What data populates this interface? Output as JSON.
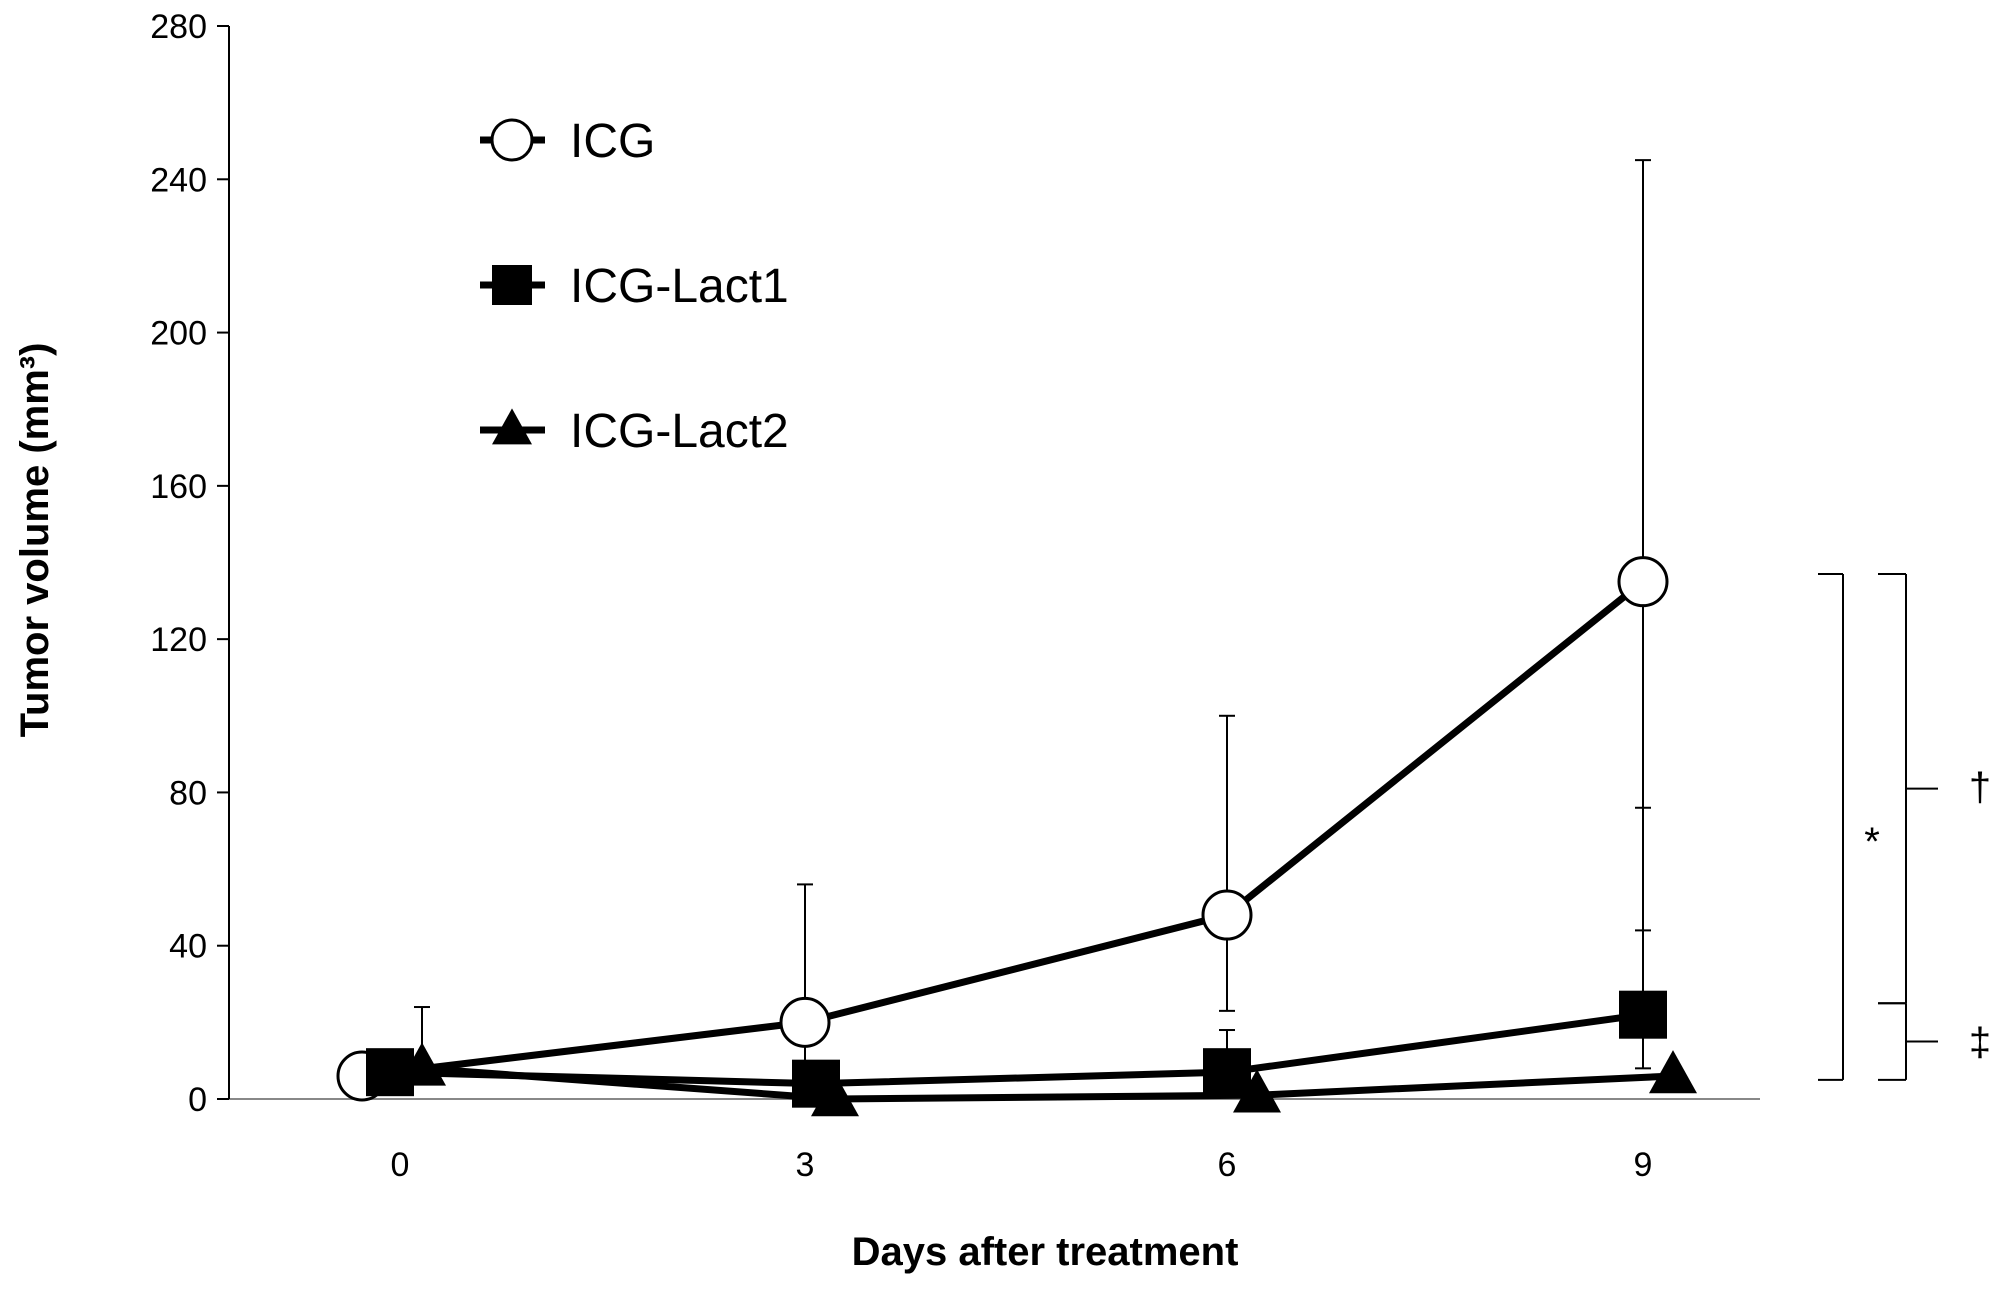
{
  "chart_data": {
    "type": "line",
    "title": "",
    "xlabel": "Days after treatment",
    "ylabel": "Tumor volume (mm³)",
    "x": [
      0,
      3,
      6,
      9
    ],
    "x_ticks": [
      "0",
      "3",
      "6",
      "9"
    ],
    "ylim": [
      0,
      280
    ],
    "y_ticks": [
      "0",
      "40",
      "80",
      "120",
      "160",
      "200",
      "240",
      "280"
    ],
    "grid": false,
    "legend_position": "top-left",
    "colors": {
      "line": "#000000",
      "background": "#ffffff"
    },
    "series": [
      {
        "name": "ICG",
        "marker": "open-circle",
        "values": [
          6,
          20,
          48,
          135
        ],
        "error_up": [
          6,
          36,
          52,
          110
        ],
        "error_down": [
          0,
          12,
          25,
          91
        ]
      },
      {
        "name": "ICG-Lact1",
        "marker": "filled-square",
        "values": [
          7,
          4,
          7,
          22
        ],
        "error_up": [
          0,
          0,
          11,
          54
        ],
        "error_down": [
          0,
          0,
          0,
          14
        ]
      },
      {
        "name": "ICG-Lact2",
        "marker": "filled-triangle",
        "values": [
          8,
          0,
          1,
          6
        ],
        "error_up": [
          16,
          0,
          0,
          0
        ],
        "error_down": [
          0,
          0,
          0,
          0
        ]
      }
    ],
    "significance": [
      {
        "label": "*",
        "from": 5,
        "to": 137
      },
      {
        "label": "†",
        "from": 25,
        "to": 137
      },
      {
        "label": "‡",
        "from": 5,
        "to": 25
      }
    ]
  }
}
